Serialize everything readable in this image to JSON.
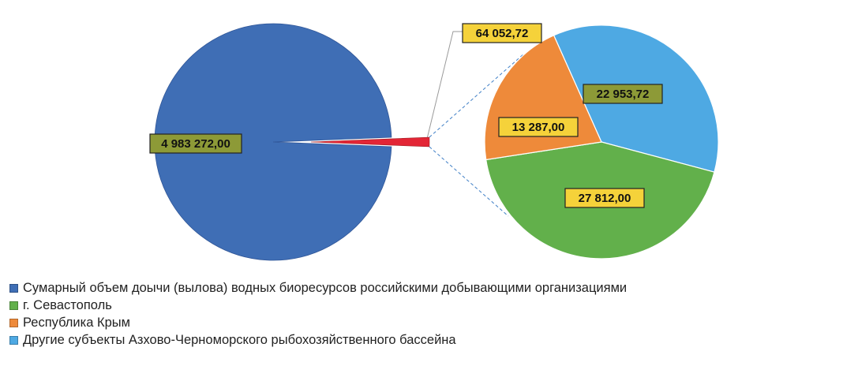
{
  "chart_data": {
    "type": "pie",
    "subtype": "pie-of-pie",
    "main_pie": {
      "slices": [
        {
          "label": "Сумарный объем доычи (вылова) водных биоресурсов российскими добывающими организациями",
          "value": 4983272.0,
          "value_label": "4 983 272,00",
          "color": "#3F6EB5"
        },
        {
          "label": "",
          "value": 64052.72,
          "value_label": "64 052,72",
          "color": "#E32636"
        }
      ]
    },
    "secondary_pie": {
      "slices": [
        {
          "label": "Другие субъекты Азхово-Черноморского рыбохозяйственного бассейна",
          "value": 22953.72,
          "value_label": "22 953,72",
          "color": "#4EA9E3"
        },
        {
          "label": "г. Севастополь",
          "value": 27812.0,
          "value_label": "27 812,00",
          "color": "#62B04B"
        },
        {
          "label": "Республика Крым",
          "value": 13287.0,
          "value_label": "13 287,00",
          "color": "#EE8A3A"
        }
      ]
    },
    "legend_position": "bottom-left",
    "legend": [
      {
        "label": "Сумарный объем доычи (вылова) водных биоресурсов российскими добывающими организациями",
        "color": "#3F6EB5"
      },
      {
        "label": "г. Севастополь",
        "color": "#62B04B"
      },
      {
        "label": "Республика Крым",
        "color": "#EE8A3A"
      },
      {
        "label": "Другие субъекты Азхово-Черноморского рыбохозяйственного бассейна",
        "color": "#4EA9E3"
      }
    ],
    "data_label_colors": {
      "default_fill": "#8D9A37",
      "highlight_fill": "#F5D23A"
    }
  }
}
